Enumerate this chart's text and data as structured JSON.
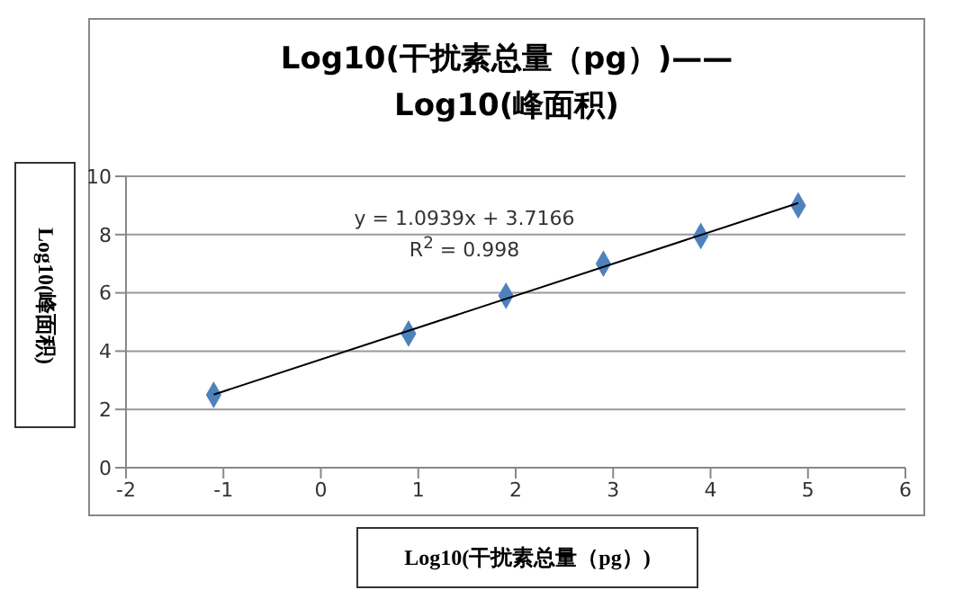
{
  "chart_data": {
    "type": "scatter",
    "title": "Log10(干扰素总量（pg）)——\nLog10(峰面积)",
    "xlabel": "Log10(干扰素总量（pg）)",
    "ylabel": "Log10(峰面积)",
    "annotations": [
      "y = 1.0939x + 3.7166",
      "R$^{2}$ = 0.998"
    ],
    "series": [
      {
        "color": "#4f81bd",
        "marker": "diamond",
        "x": [
          -1.1,
          0.9,
          1.9,
          2.9,
          3.9,
          4.9
        ],
        "values": [
          2.5,
          4.6,
          5.9,
          7.0,
          7.95,
          9.0
        ]
      },
      {
        "type": "line",
        "color": "#000000",
        "marker": "none",
        "x": [
          -1.1,
          4.9
        ],
        "values": [
          2.51,
          9.08
        ]
      }
    ],
    "xlim": [
      -2,
      6
    ],
    "xticks": [
      -2,
      -1,
      0,
      1,
      2,
      3,
      4,
      5,
      6
    ],
    "ylim": [
      0,
      10
    ],
    "yticks": [
      0,
      2,
      4,
      6,
      8,
      10
    ],
    "grid": "y",
    "legend": false
  }
}
